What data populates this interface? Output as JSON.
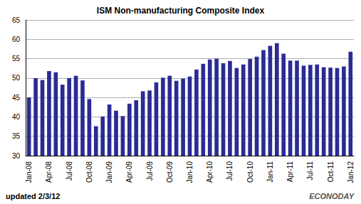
{
  "chart_data": {
    "type": "bar",
    "title": "ISM Non-manufacturing Composite Index",
    "categories": [
      "Jan-08",
      null,
      null,
      "Apr-08",
      null,
      null,
      "Jul-08",
      null,
      null,
      "Oct-08",
      null,
      null,
      "Jan-09",
      null,
      null,
      "Apr-09",
      null,
      null,
      "Jul-09",
      null,
      null,
      "Oct-09",
      null,
      null,
      "Jan-10",
      null,
      null,
      "Apr-10",
      null,
      null,
      "Jul-10",
      null,
      null,
      "Oct-10",
      null,
      null,
      "Jan-11",
      null,
      null,
      "Apr-11",
      null,
      null,
      "Jul-11",
      null,
      null,
      "Oct-11",
      null,
      null,
      "Jan-12"
    ],
    "values": [
      45.0,
      50.0,
      49.5,
      51.8,
      51.5,
      48.3,
      50.0,
      50.6,
      49.4,
      44.6,
      37.6,
      40.1,
      43.2,
      41.6,
      40.2,
      43.4,
      44.3,
      46.6,
      46.8,
      48.9,
      50.1,
      50.6,
      49.3,
      49.9,
      50.4,
      52.2,
      53.7,
      54.8,
      55.0,
      53.8,
      54.4,
      52.6,
      53.5,
      54.9,
      55.5,
      57.2,
      58.3,
      59.0,
      56.3,
      54.5,
      54.5,
      53.2,
      53.4,
      53.5,
      52.8,
      52.7,
      52.6,
      53.0,
      56.8
    ],
    "color": "#2b2b95",
    "ylim": [
      30,
      65
    ],
    "yticks": [
      30,
      35,
      40,
      45,
      50,
      55,
      60,
      65
    ],
    "grid": true,
    "annotations": [
      "updated 2/3/12",
      "ECONODAY"
    ]
  }
}
